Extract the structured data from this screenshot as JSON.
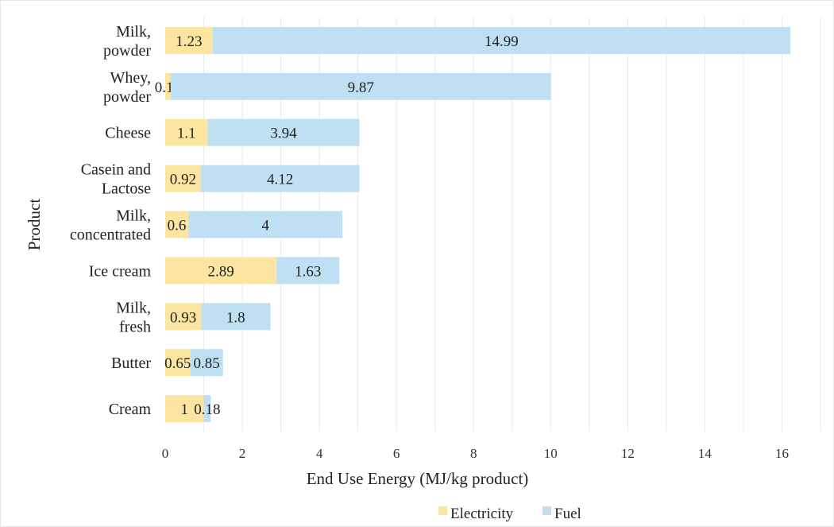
{
  "colors": {
    "electricity": "#FCE5A0",
    "fuel": "#BFE0F2"
  },
  "chart_data": {
    "type": "bar",
    "orientation": "horizontal",
    "stacked": true,
    "categories": [
      [
        "Milk,",
        "powder"
      ],
      [
        "Whey,",
        "powder"
      ],
      [
        "Cheese"
      ],
      [
        "Casein and",
        "Lactose"
      ],
      [
        "Milk,",
        "concentrated"
      ],
      [
        "Ice cream"
      ],
      [
        "Milk,",
        "fresh"
      ],
      [
        "Butter"
      ],
      [
        "Cream"
      ]
    ],
    "series": [
      {
        "name": "Electricity",
        "values": [
          1.23,
          0.14,
          1.1,
          0.92,
          0.6,
          2.89,
          0.93,
          0.65,
          1
        ],
        "labels": [
          "1.23",
          "0.14",
          "1.1",
          "0.92",
          "0.6",
          "2.89",
          "0.93",
          "0.65",
          "1"
        ]
      },
      {
        "name": "Fuel",
        "values": [
          14.99,
          9.87,
          3.94,
          4.12,
          4,
          1.63,
          1.8,
          0.85,
          0.18
        ],
        "labels": [
          "14.99",
          "9.87",
          "3.94",
          "4.12",
          "4",
          "1.63",
          "1.8",
          "0.85",
          "0.18"
        ]
      }
    ],
    "xlabel": "End Use Energy (MJ/kg product)",
    "ylabel": "Product",
    "xlim": [
      0,
      17
    ],
    "xticks": [
      0,
      2,
      4,
      6,
      8,
      10,
      12,
      14,
      16
    ],
    "grid": "vertical",
    "legend": "bottom"
  }
}
